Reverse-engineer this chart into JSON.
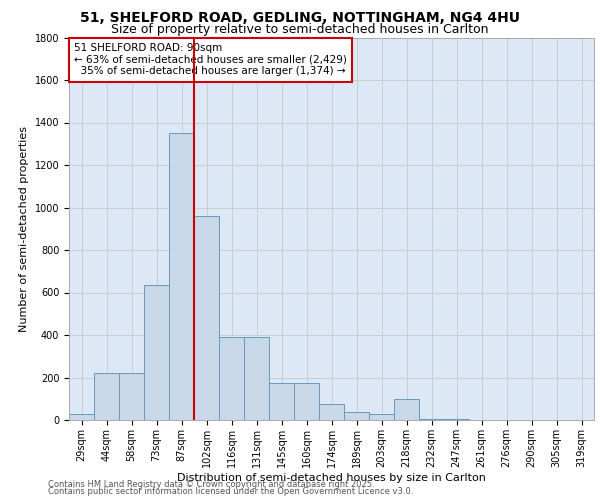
{
  "title_line1": "51, SHELFORD ROAD, GEDLING, NOTTINGHAM, NG4 4HU",
  "title_line2": "Size of property relative to semi-detached houses in Carlton",
  "xlabel": "Distribution of semi-detached houses by size in Carlton",
  "ylabel": "Number of semi-detached properties",
  "categories": [
    "29sqm",
    "44sqm",
    "58sqm",
    "73sqm",
    "87sqm",
    "102sqm",
    "116sqm",
    "131sqm",
    "145sqm",
    "160sqm",
    "174sqm",
    "189sqm",
    "203sqm",
    "218sqm",
    "232sqm",
    "247sqm",
    "261sqm",
    "276sqm",
    "290sqm",
    "305sqm",
    "319sqm"
  ],
  "values": [
    30,
    220,
    220,
    635,
    1350,
    960,
    390,
    390,
    175,
    175,
    75,
    40,
    30,
    100,
    5,
    3,
    2,
    2,
    2,
    2,
    2
  ],
  "bar_color": "#c8d8e8",
  "bar_edge_color": "#6699bb",
  "grid_color": "#cccccc",
  "background_color": "#dce8f5",
  "property_line_x": 4.5,
  "property_label": "51 SHELFORD ROAD: 90sqm",
  "pct_smaller": "63% of semi-detached houses are smaller (2,429)",
  "pct_larger": "35% of semi-detached houses are larger (1,374)",
  "annotation_box_color": "#cc0000",
  "ylim": [
    0,
    1800
  ],
  "yticks": [
    0,
    200,
    400,
    600,
    800,
    1000,
    1200,
    1400,
    1600,
    1800
  ],
  "footer1": "Contains HM Land Registry data © Crown copyright and database right 2025.",
  "footer2": "Contains public sector information licensed under the Open Government Licence v3.0.",
  "title_fontsize": 10,
  "subtitle_fontsize": 9,
  "axis_label_fontsize": 8,
  "tick_fontsize": 7,
  "footer_fontsize": 6,
  "annot_fontsize": 7.5
}
